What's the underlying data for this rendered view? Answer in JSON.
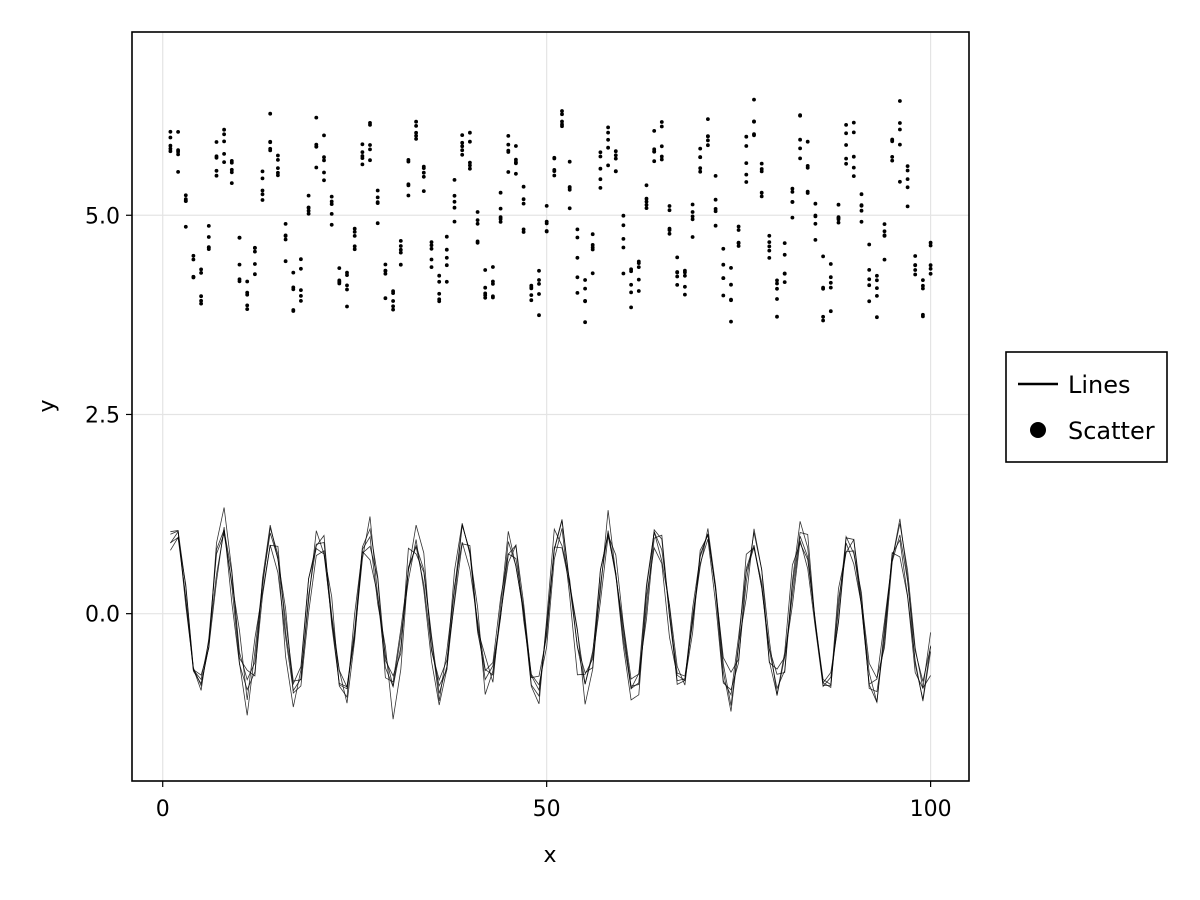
{
  "chart_data": {
    "type": "line",
    "title": "",
    "xlabel": "x",
    "ylabel": "y",
    "xlim": [
      -4,
      105
    ],
    "ylim": [
      -2.1,
      7.3
    ],
    "xticks": [
      0,
      50,
      100
    ],
    "xtick_labels": [
      "0",
      "50",
      "100"
    ],
    "yticks": [
      0.0,
      2.5,
      5.0
    ],
    "ytick_labels": [
      "0.0",
      "2.5",
      "5.0"
    ],
    "grid": true,
    "legend_position": "right",
    "legend": [
      {
        "label": "Lines",
        "marker": "line"
      },
      {
        "label": "Scatter",
        "marker": "circle"
      }
    ],
    "color": "#000000",
    "series": [
      {
        "kind": "lines",
        "count": 5,
        "x": [
          1,
          2,
          3,
          4,
          5,
          6,
          7,
          8,
          9,
          10,
          11,
          12,
          13,
          14,
          15,
          16,
          17,
          18,
          19,
          20,
          21,
          22,
          23,
          24,
          25,
          26,
          27,
          28,
          29,
          30,
          31,
          32,
          33,
          34,
          35,
          36,
          37,
          38,
          39,
          40,
          41,
          42,
          43,
          44,
          45,
          46,
          47,
          48,
          49,
          50,
          51,
          52,
          53,
          54,
          55,
          56,
          57,
          58,
          59,
          60,
          61,
          62,
          63,
          64,
          65,
          66,
          67,
          68,
          69,
          70,
          71,
          72,
          73,
          74,
          75,
          76,
          77,
          78,
          79,
          80,
          81,
          82,
          83,
          84,
          85,
          86,
          87,
          88,
          89,
          90,
          91,
          92,
          93,
          94,
          95,
          96,
          97,
          98,
          99,
          100
        ],
        "trend_y": [
          0.84,
          0.91,
          0.14,
          -0.76,
          -0.96,
          -0.28,
          0.66,
          0.99,
          0.41,
          -0.54,
          -1.0,
          -0.54,
          0.42,
          0.99,
          0.65,
          -0.29,
          -0.96,
          -0.75,
          0.15,
          0.91,
          0.84,
          0.0,
          -0.85,
          -0.91,
          -0.13,
          0.76,
          0.96,
          0.27,
          -0.66,
          -0.99,
          -0.4,
          0.55,
          1.0,
          0.53,
          -0.43,
          -0.99,
          -0.64,
          0.3,
          0.96,
          0.75,
          -0.16,
          -0.92,
          -0.83,
          0.02,
          0.85,
          0.9,
          0.12,
          -0.77,
          -0.95,
          -0.26,
          0.67,
          0.99,
          0.4,
          -0.56,
          -1.0,
          -0.52,
          0.44,
          0.99,
          0.64,
          -0.3,
          -0.97,
          -0.74,
          0.17,
          0.92,
          0.83,
          -0.03,
          -0.86,
          -0.9,
          -0.11,
          0.77,
          0.95,
          0.25,
          -0.68,
          -0.99,
          -0.39,
          0.56,
          1.0,
          0.51,
          -0.44,
          -0.99,
          -0.63,
          0.31,
          0.97,
          0.73,
          -0.18,
          -0.92,
          -0.82,
          0.04,
          0.86,
          0.89,
          0.1,
          -0.78,
          -0.95,
          -0.25,
          0.68,
          0.98,
          0.38,
          -0.57,
          -1.0,
          -0.51
        ]
      },
      {
        "kind": "scatter",
        "count": 5,
        "offset": 5,
        "x": [
          1,
          2,
          3,
          4,
          5,
          6,
          7,
          8,
          9,
          10,
          11,
          12,
          13,
          14,
          15,
          16,
          17,
          18,
          19,
          20,
          21,
          22,
          23,
          24,
          25,
          26,
          27,
          28,
          29,
          30,
          31,
          32,
          33,
          34,
          35,
          36,
          37,
          38,
          39,
          40,
          41,
          42,
          43,
          44,
          45,
          46,
          47,
          48,
          49,
          50,
          51,
          52,
          53,
          54,
          55,
          56,
          57,
          58,
          59,
          60,
          61,
          62,
          63,
          64,
          65,
          66,
          67,
          68,
          69,
          70,
          71,
          72,
          73,
          74,
          75,
          76,
          77,
          78,
          79,
          80,
          81,
          82,
          83,
          84,
          85,
          86,
          87,
          88,
          89,
          90,
          91,
          92,
          93,
          94,
          95,
          96,
          97,
          98,
          99,
          100
        ],
        "trend_y": [
          5.84,
          5.91,
          5.14,
          4.24,
          4.04,
          4.72,
          5.66,
          5.99,
          5.41,
          4.46,
          4.0,
          4.46,
          5.42,
          5.99,
          5.65,
          4.71,
          4.04,
          4.25,
          5.15,
          5.91,
          5.84,
          5.0,
          4.15,
          4.09,
          4.87,
          5.76,
          5.96,
          5.27,
          4.34,
          4.01,
          4.6,
          5.55,
          6.0,
          5.53,
          4.57,
          4.01,
          4.36,
          5.3,
          5.96,
          5.75,
          4.84,
          4.08,
          4.17,
          5.02,
          5.85,
          5.9,
          5.12,
          4.23,
          4.05,
          4.74,
          5.67,
          5.99,
          5.4,
          4.44,
          4.0,
          4.48,
          5.44,
          5.99,
          5.64,
          4.7,
          4.03,
          4.26,
          5.17,
          5.92,
          5.83,
          4.97,
          4.14,
          4.1,
          4.89,
          5.77,
          5.95,
          5.25,
          4.32,
          4.01,
          4.61,
          5.56,
          6.0,
          5.51,
          4.56,
          4.01,
          4.37,
          5.31,
          5.97,
          5.73,
          4.82,
          4.08,
          4.18,
          5.04,
          5.86,
          5.89,
          5.1,
          4.22,
          4.05,
          4.75,
          5.68,
          5.98,
          5.38,
          4.43,
          4.0,
          4.49
        ]
      }
    ]
  }
}
